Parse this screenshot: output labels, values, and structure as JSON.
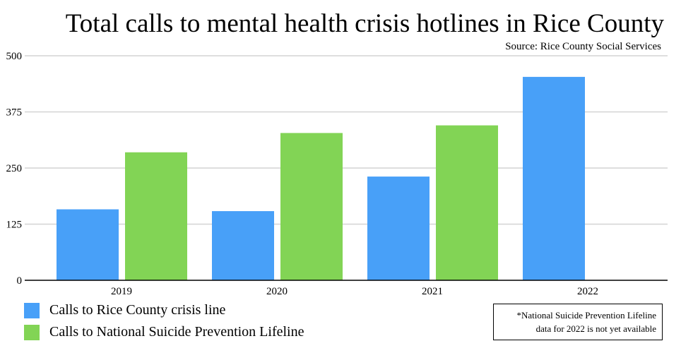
{
  "chart_data": {
    "type": "bar",
    "title": "Total calls to mental health crisis hotlines in Rice County",
    "subtitle": "Source: Rice County Social Services",
    "categories": [
      "2019",
      "2020",
      "2021",
      "2022"
    ],
    "series": [
      {
        "name": "Calls to Rice County crisis line",
        "color": "#48a0f8",
        "values": [
          158,
          154,
          231,
          453
        ]
      },
      {
        "name": "Calls to National Suicide Prevention Lifeline",
        "color": "#82d455",
        "values": [
          285,
          328,
          345,
          null
        ]
      }
    ],
    "yticks": [
      "0",
      "125",
      "250",
      "375",
      "500"
    ],
    "ylim": [
      0,
      500
    ],
    "grid": true,
    "legend_position": "bottom-left",
    "annotation": [
      "*National Suicide Prevention Lifeline",
      "data for 2022 is not yet available"
    ]
  }
}
